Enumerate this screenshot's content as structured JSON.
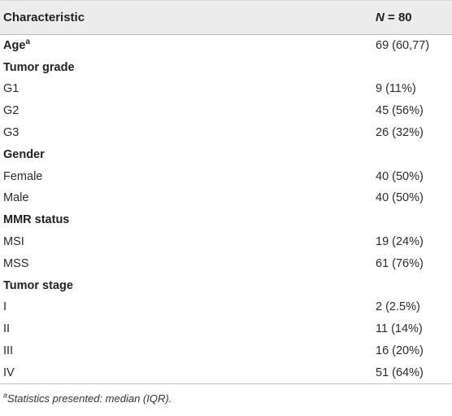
{
  "table": {
    "header": {
      "characteristic": "Characteristic",
      "n_label": "N",
      "n_value": "= 80"
    },
    "rows": [
      {
        "label": "Age",
        "sup": "a",
        "value": "69 (60,77)",
        "section": true
      },
      {
        "label": "Tumor grade",
        "value": "",
        "section": true
      },
      {
        "label": "G1",
        "value": "9 (11%)",
        "section": false
      },
      {
        "label": "G2",
        "value": "45 (56%)",
        "section": false
      },
      {
        "label": "G3",
        "value": "26 (32%)",
        "section": false
      },
      {
        "label": "Gender",
        "value": "",
        "section": true
      },
      {
        "label": "Female",
        "value": "40 (50%)",
        "section": false
      },
      {
        "label": "Male",
        "value": "40 (50%)",
        "section": false
      },
      {
        "label": "MMR status",
        "value": "",
        "section": true
      },
      {
        "label": "MSI",
        "value": "19 (24%)",
        "section": false
      },
      {
        "label": "MSS",
        "value": "61 (76%)",
        "section": false
      },
      {
        "label": "Tumor stage",
        "value": "",
        "section": true
      },
      {
        "label": "I",
        "value": "2 (2.5%)",
        "section": false
      },
      {
        "label": "II",
        "value": "11 (14%)",
        "section": false
      },
      {
        "label": "III",
        "value": "16 (20%)",
        "section": false
      },
      {
        "label": "IV",
        "value": "51 (64%)",
        "section": false
      }
    ]
  },
  "footnote": {
    "marker": "a",
    "text": "Statistics presented: median (IQR)."
  }
}
